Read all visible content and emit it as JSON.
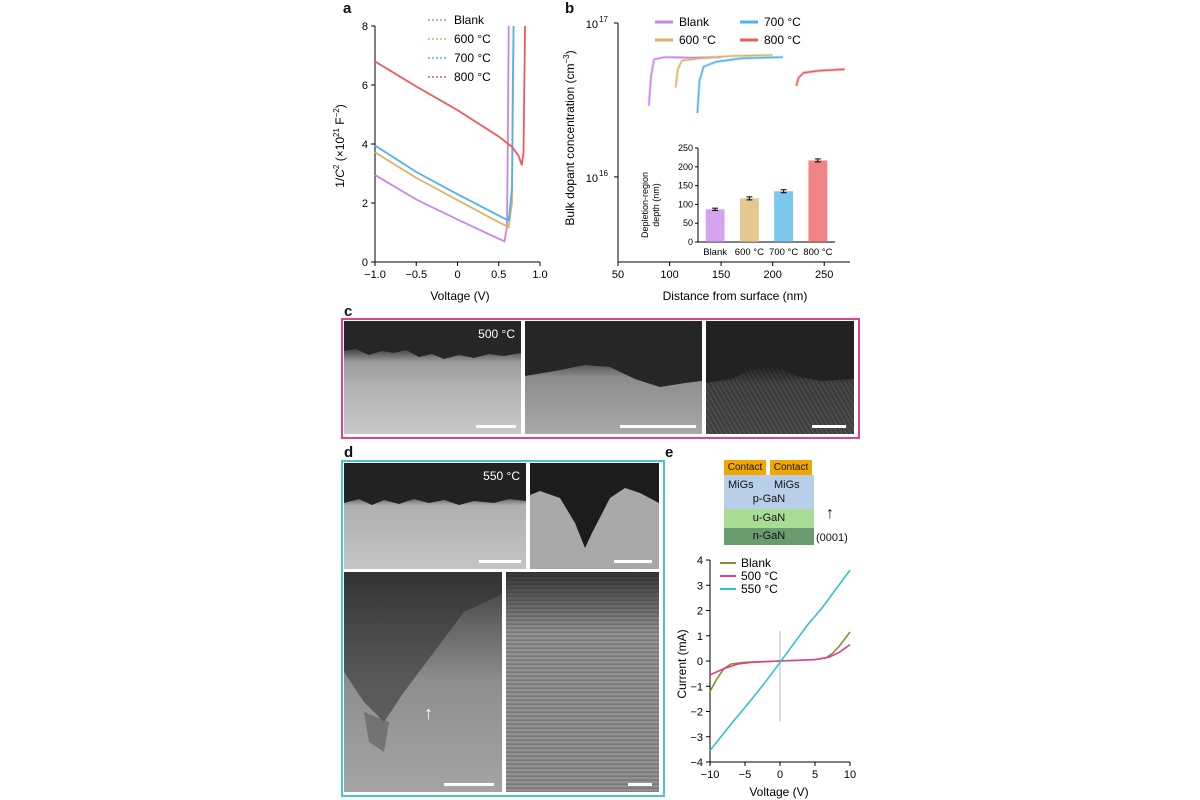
{
  "panel_labels": {
    "a": "a",
    "b": "b",
    "c": "c",
    "d": "d",
    "e": "e"
  },
  "colors": {
    "blank": "#c784e8",
    "c600": "#d9b56a",
    "c700": "#4fb4e8",
    "c800": "#ec5b5b",
    "frame_c": "#e0438e",
    "frame_d": "#48c6cf",
    "e_blank": "#8a8a2e",
    "e_500": "#e0408a",
    "e_550": "#2ec5cf",
    "contact": "#f0a800",
    "pgan": "#b7cfe8",
    "ugan": "#a9dc95",
    "ngan": "#6b9c70"
  },
  "chart_data": [
    {
      "id": "a",
      "type": "line",
      "title": "",
      "xlabel": "Voltage (V)",
      "ylabel_parts": {
        "p1": "1/",
        "C": "C",
        "sup2": "2",
        "p2": " (×10",
        "sup21": "21",
        "p3": " F",
        "supm2": "−2",
        "p4": ")"
      },
      "xlim": [
        -1.0,
        1.0
      ],
      "ylim": [
        0,
        8
      ],
      "xticks": [
        "−1.0",
        "−0.5",
        "0",
        "0.5",
        "1.0"
      ],
      "xtick_values": [
        -1.0,
        -0.5,
        0,
        0.5,
        1.0
      ],
      "yticks": [
        "0",
        "2",
        "4",
        "6",
        "8"
      ],
      "ytick_values": [
        0,
        2,
        4,
        6,
        8
      ],
      "legend": [
        "Blank",
        "600 °C",
        "700 °C",
        "800 °C"
      ],
      "series": [
        {
          "name": "Blank",
          "color_key": "blank",
          "points": [
            [
              -1.0,
              2.95
            ],
            [
              -0.5,
              2.12
            ],
            [
              0,
              1.44
            ],
            [
              0.4,
              0.92
            ],
            [
              0.57,
              0.7
            ],
            [
              0.6,
              1.2
            ],
            [
              0.61,
              4
            ],
            [
              0.62,
              8
            ]
          ]
        },
        {
          "name": "600 °C",
          "color_key": "c600",
          "points": [
            [
              -1.0,
              3.72
            ],
            [
              -0.5,
              2.85
            ],
            [
              0,
              2.1
            ],
            [
              0.4,
              1.5
            ],
            [
              0.62,
              1.18
            ],
            [
              0.66,
              2
            ],
            [
              0.67,
              5
            ],
            [
              0.68,
              8
            ]
          ]
        },
        {
          "name": "700 °C",
          "color_key": "c700",
          "points": [
            [
              -1.0,
              3.95
            ],
            [
              -0.5,
              3.05
            ],
            [
              0,
              2.3
            ],
            [
              0.4,
              1.72
            ],
            [
              0.62,
              1.4
            ],
            [
              0.66,
              2.5
            ],
            [
              0.67,
              6
            ],
            [
              0.68,
              8
            ]
          ]
        },
        {
          "name": "800 °C",
          "color_key": "c800",
          "points": [
            [
              -1.0,
              6.8
            ],
            [
              -0.5,
              5.95
            ],
            [
              0,
              5.15
            ],
            [
              0.5,
              4.25
            ],
            [
              0.66,
              3.9
            ],
            [
              0.74,
              3.6
            ],
            [
              0.78,
              3.28
            ],
            [
              0.8,
              3.7
            ],
            [
              0.81,
              6
            ],
            [
              0.82,
              8
            ]
          ]
        }
      ]
    },
    {
      "id": "b",
      "type": "line",
      "title": "",
      "xlabel": "Distance from surface (nm)",
      "ylabel_parts": {
        "p1": "Bulk dopant concentration (cm",
        "sup": "−3",
        "p2": ")"
      },
      "xlim": [
        50,
        275
      ],
      "ylim_log": [
        2800000000000000.0,
        1e+17
      ],
      "yscale": "log",
      "xticks": [
        "50",
        "100",
        "150",
        "200",
        "250"
      ],
      "xtick_values": [
        50,
        100,
        150,
        200,
        250
      ],
      "yticks_base": [
        "10",
        "10"
      ],
      "yticks_exp": [
        "16",
        "17"
      ],
      "ytick_values": [
        1e+16,
        1e+17
      ],
      "legend": [
        "Blank",
        "600 °C",
        "700 °C",
        "800 °C"
      ],
      "series": [
        {
          "name": "Blank",
          "color_key": "blank",
          "points": [
            [
              80,
              2.9e+16
            ],
            [
              82,
              4.5e+16
            ],
            [
              85,
              5.8e+16
            ],
            [
              95,
              6e+16
            ],
            [
              120,
              5.95e+16
            ],
            [
              150,
              6e+16
            ]
          ]
        },
        {
          "name": "600 °C",
          "color_key": "c600",
          "points": [
            [
              106,
              3.8e+16
            ],
            [
              108,
              5e+16
            ],
            [
              112,
              5.7e+16
            ],
            [
              130,
              5.9e+16
            ],
            [
              160,
              6.1e+16
            ],
            [
              200,
              6.2e+16
            ]
          ]
        },
        {
          "name": "700 °C",
          "color_key": "c700",
          "points": [
            [
              127,
              2.6e+16
            ],
            [
              129,
              4.2e+16
            ],
            [
              133,
              5.2e+16
            ],
            [
              145,
              5.6e+16
            ],
            [
              170,
              5.9e+16
            ],
            [
              210,
              6e+16
            ]
          ]
        },
        {
          "name": "800 °C",
          "color_key": "c800",
          "points": [
            [
              223,
              3.9e+16
            ],
            [
              225,
              4.4e+16
            ],
            [
              230,
              4.75e+16
            ],
            [
              245,
              4.9e+16
            ],
            [
              270,
              5e+16
            ]
          ]
        }
      ]
    },
    {
      "id": "b_inset",
      "type": "bar",
      "ylabel_lines": [
        "Depletion-region",
        "depth (nm)"
      ],
      "categories": [
        "Blank",
        "600 °C",
        "700 °C",
        "800 °C"
      ],
      "values": [
        87,
        116,
        135,
        217
      ],
      "errors": [
        3,
        4,
        4,
        4
      ],
      "color_keys": [
        "blank",
        "c600",
        "c700",
        "c800"
      ],
      "ylim": [
        0,
        250
      ],
      "yticks": [
        "0",
        "50",
        "100",
        "150",
        "200",
        "250"
      ],
      "ytick_values": [
        0,
        50,
        100,
        150,
        200,
        250
      ]
    },
    {
      "id": "e",
      "type": "line",
      "title": "",
      "xlabel": "Voltage (V)",
      "ylabel": "Current (mA)",
      "xlim": [
        -10,
        10
      ],
      "ylim": [
        -4,
        4
      ],
      "xticks": [
        "−10",
        "−5",
        "0",
        "5",
        "10"
      ],
      "xtick_values": [
        -10,
        -5,
        0,
        5,
        10
      ],
      "yticks": [
        "−4",
        "−3",
        "−2",
        "−1",
        "0",
        "1",
        "2",
        "3",
        "4"
      ],
      "ytick_values": [
        -4,
        -3,
        -2,
        -1,
        0,
        1,
        2,
        3,
        4
      ],
      "legend": [
        "Blank",
        "500 °C",
        "550 °C"
      ],
      "series": [
        {
          "name": "Blank",
          "color_key": "e_blank",
          "points": [
            [
              -10,
              -1.2
            ],
            [
              -9,
              -0.7
            ],
            [
              -8,
              -0.3
            ],
            [
              -7,
              -0.12
            ],
            [
              -5,
              -0.05
            ],
            [
              0,
              0
            ],
            [
              5,
              0.06
            ],
            [
              6.5,
              0.12
            ],
            [
              7.5,
              0.3
            ],
            [
              8.5,
              0.6
            ],
            [
              10,
              1.15
            ]
          ]
        },
        {
          "name": "500 °C",
          "color_key": "e_500",
          "points": [
            [
              -10,
              -0.55
            ],
            [
              -8,
              -0.3
            ],
            [
              -6,
              -0.12
            ],
            [
              -4,
              -0.05
            ],
            [
              0,
              0
            ],
            [
              5,
              0.05
            ],
            [
              7,
              0.15
            ],
            [
              8.5,
              0.35
            ],
            [
              10,
              0.65
            ]
          ]
        },
        {
          "name": "550 °C",
          "color_key": "e_550",
          "points": [
            [
              -10,
              -3.55
            ],
            [
              -7,
              -2.5
            ],
            [
              -4,
              -1.5
            ],
            [
              -2,
              -0.8
            ],
            [
              0,
              -0.05
            ],
            [
              2,
              0.7
            ],
            [
              4,
              1.45
            ],
            [
              6,
              2.1
            ],
            [
              8,
              2.85
            ],
            [
              10,
              3.6
            ]
          ]
        }
      ]
    }
  ],
  "panel_c": {
    "temperature": "500 °C"
  },
  "panel_d": {
    "temperature": "550 °C"
  },
  "panel_e_schematic": {
    "contact_left": "Contact",
    "contact_right": "Contact",
    "migs_left": "MiGs",
    "migs_right": "MiGs",
    "pgan": "p-GaN",
    "ugan": "u-GaN",
    "ngan": "n-GaN",
    "direction": "(0001)"
  }
}
